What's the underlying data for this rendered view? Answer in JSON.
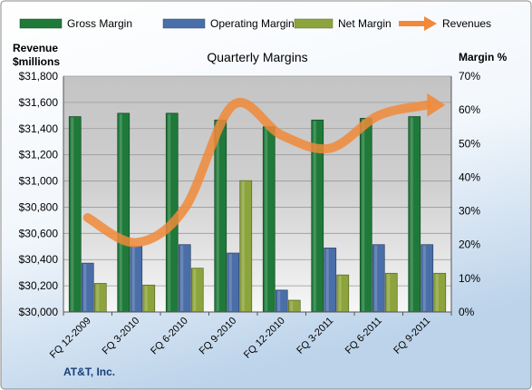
{
  "chart_data": {
    "type": "bar",
    "title": "Quarterly Margins",
    "company": "AT&T, Inc.",
    "left_axis_title": [
      "Revenue",
      "$millions"
    ],
    "right_axis_title": "Margin %",
    "left_axis": {
      "min": 30000,
      "max": 31800,
      "step": 200,
      "tick_labels": [
        "$30,000",
        "$30,200",
        "$30,400",
        "$30,600",
        "$30,800",
        "$31,000",
        "$31,200",
        "$31,400",
        "$31,600",
        "$31,800"
      ]
    },
    "right_axis": {
      "min": 0,
      "max": 70,
      "step": 10,
      "tick_labels": [
        "0%",
        "10%",
        "20%",
        "30%",
        "40%",
        "50%",
        "60%",
        "70%"
      ]
    },
    "categories": [
      "FQ 12-2009",
      "FQ 3-2010",
      "FQ 6-2010",
      "FQ 9-2010",
      "FQ 12-2010",
      "FQ 3-2011",
      "FQ 6-2011",
      "FQ 9-2011"
    ],
    "series": [
      {
        "name": "Gross Margin",
        "type": "bar",
        "axis": "right",
        "color": "#1f7a3a",
        "values": [
          58,
          59,
          59,
          57,
          55,
          57,
          57.5,
          58
        ]
      },
      {
        "name": "Operating Margin",
        "type": "bar",
        "axis": "right",
        "color": "#4a6ea8",
        "values": [
          14.5,
          19.5,
          20,
          17.5,
          6.5,
          19,
          20,
          20
        ]
      },
      {
        "name": "Net Margin",
        "type": "bar",
        "axis": "right",
        "color": "#8da43c",
        "values": [
          8.5,
          8,
          13,
          39,
          3.5,
          11,
          11.5,
          11.5
        ]
      },
      {
        "name": "Revenues",
        "type": "line",
        "axis": "left",
        "color": "#f08a3a",
        "values": [
          30720,
          30530,
          30790,
          31580,
          31350,
          31250,
          31500,
          31580
        ]
      }
    ],
    "legend_position": "top",
    "grid": true
  }
}
